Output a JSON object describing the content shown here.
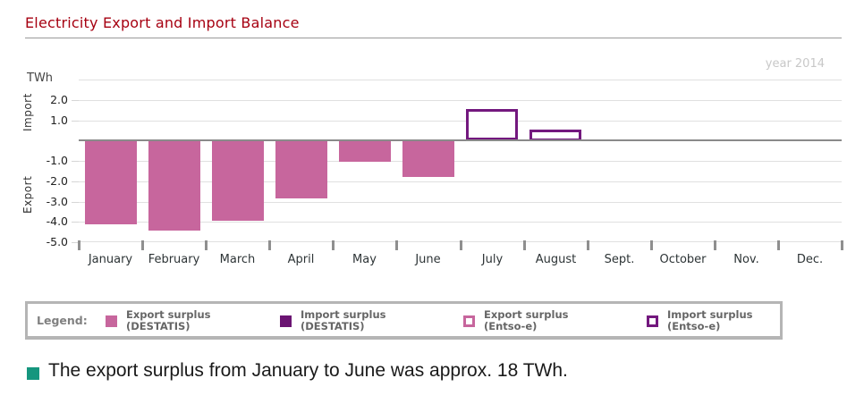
{
  "title": "Electricity Export and Import Balance",
  "year_label": "year 2014",
  "colors": {
    "title_red": "#a60011",
    "export_pink": "#c7669d",
    "import_purple": "#6b1472",
    "entsoe_outline_purple": "#73187e",
    "note_bullet_teal": "#16967e",
    "gridline": "#e0e0e0",
    "zero_line": "#8a8a8a"
  },
  "chart_data": {
    "type": "bar",
    "title": "Electricity Export and Import Balance",
    "ylabel_unit": "TWh",
    "axis_annotations": {
      "positive": "Import",
      "negative": "Export"
    },
    "ylim": [
      -5,
      3
    ],
    "yticks": [
      2.0,
      1.0,
      -1.0,
      -2.0,
      -3.0,
      -4.0,
      -5.0
    ],
    "grid": true,
    "legend_position": "bottom",
    "categories": [
      "January",
      "February",
      "March",
      "April",
      "May",
      "June",
      "July",
      "August",
      "Sept.",
      "October",
      "Nov.",
      "Dec."
    ],
    "series": [
      {
        "name": "Export surplus (DESTATIS)",
        "style": "filled",
        "color": "#c7669d",
        "values": [
          -4.1,
          -4.4,
          -3.9,
          -2.8,
          -1.0,
          -1.75,
          null,
          null,
          null,
          null,
          null,
          null
        ]
      },
      {
        "name": "Import surplus (Entso-e)",
        "style": "outline",
        "color": "#73187e",
        "values": [
          null,
          null,
          null,
          null,
          null,
          null,
          1.55,
          0.55,
          null,
          null,
          null,
          null
        ]
      }
    ]
  },
  "legend": {
    "label": "Legend:",
    "items": [
      {
        "line1": "Export surplus",
        "line2": "(DESTATIS)",
        "swatch": "filled",
        "color": "#c7669d"
      },
      {
        "line1": "Import surplus",
        "line2": "(DESTATIS)",
        "swatch": "filled",
        "color": "#6b1472"
      },
      {
        "line1": "Export surplus",
        "line2": "(Entso-e)",
        "swatch": "outline",
        "color": "#c7669d"
      },
      {
        "line1": "Import surplus",
        "line2": "(Entso-e)",
        "swatch": "outline",
        "color": "#73187e"
      }
    ]
  },
  "note": {
    "text": "The export surplus from January to June was approx. 18 TWh."
  }
}
